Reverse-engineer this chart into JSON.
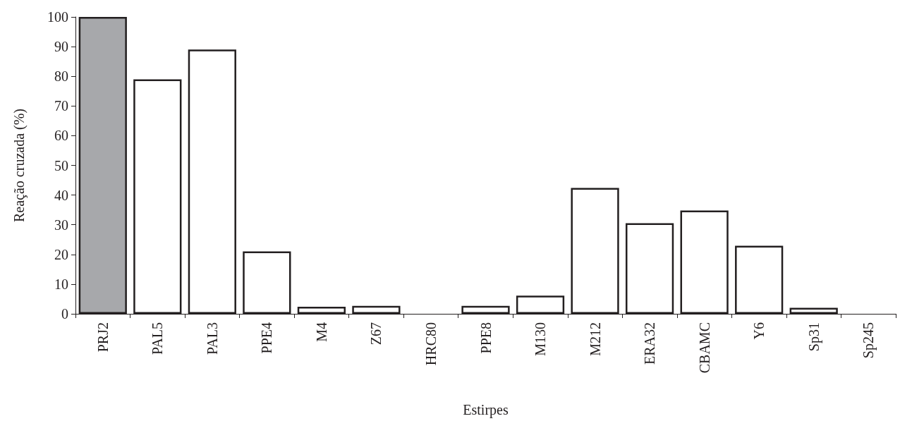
{
  "chart_data": {
    "type": "bar",
    "xlabel": "Estirpes",
    "ylabel": "Reação cruzada (%)",
    "categories": [
      "PRJ2",
      "PAL5",
      "PAL3",
      "PPE4",
      "M4",
      "Z67",
      "HRC80",
      "PPE8",
      "M130",
      "M212",
      "ERA32",
      "CBAMC",
      "Y6",
      "Sp31",
      "Sp245"
    ],
    "values": [
      100,
      79,
      89,
      21,
      2.4,
      2.7,
      0,
      2.7,
      6.1,
      42.4,
      30.5,
      34.8,
      22.9,
      2.0,
      0
    ],
    "colors": [
      "#a7a8ab",
      "#ffffff",
      "#ffffff",
      "#ffffff",
      "#ffffff",
      "#ffffff",
      "#ffffff",
      "#ffffff",
      "#ffffff",
      "#ffffff",
      "#ffffff",
      "#ffffff",
      "#ffffff",
      "#ffffff",
      "#ffffff"
    ],
    "ylim": [
      0,
      100
    ],
    "yticks": [
      0,
      10,
      20,
      30,
      40,
      50,
      60,
      70,
      80,
      90,
      100
    ],
    "grid": false
  }
}
